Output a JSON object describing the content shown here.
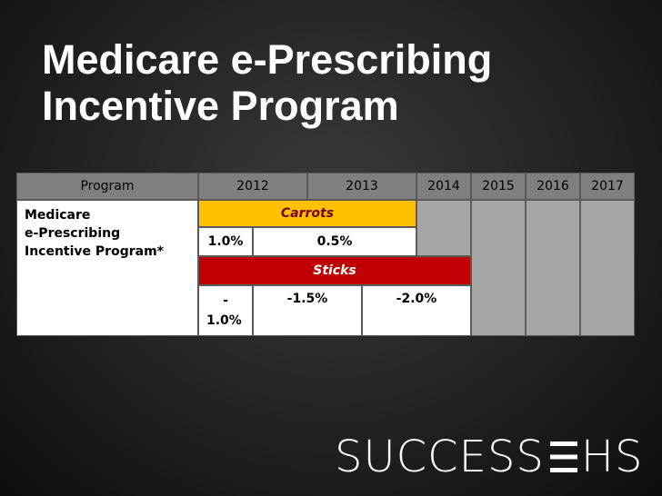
{
  "title": {
    "line1": "Medicare e-Prescribing",
    "line2": "Incentive Program"
  },
  "table": {
    "headers": {
      "program": "Program",
      "y2012": "2012",
      "y2013": "2013",
      "y2014": "2014",
      "y2015": "2015",
      "y2016": "2016",
      "y2017": "2017"
    },
    "program_name": {
      "line1": "Medicare",
      "line2": "e-Prescribing",
      "line3": "Incentive Program*"
    },
    "carrots_label": "Carrots",
    "carrot_2012": "1.0%",
    "carrot_2013": "0.5%",
    "sticks_label": "Sticks",
    "stick_2012": {
      "line1": "-",
      "line2": "1.0%"
    },
    "stick_2013": "-1.5%",
    "stick_2014": "-2.0%"
  },
  "logo": {
    "text_main": "SUCCESS",
    "text_end": "HS",
    "accent_color": "#ffffff"
  },
  "colors": {
    "carrots": "#ffc000",
    "sticks": "#c00000",
    "header": "#7f7f7f",
    "future": "#a6a6a6"
  }
}
